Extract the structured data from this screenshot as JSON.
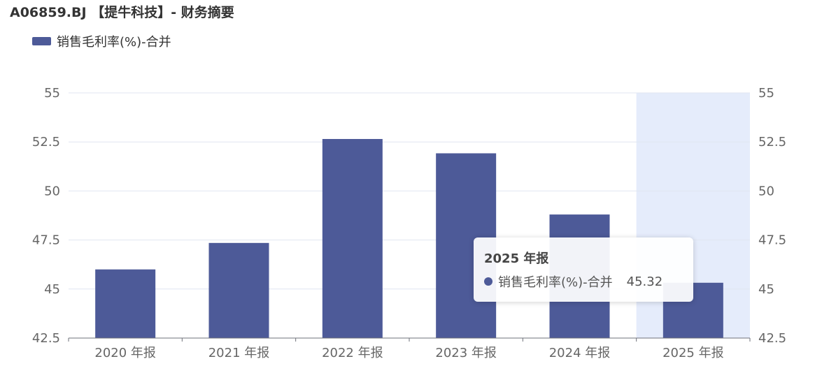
{
  "header": {
    "title": "A06859.BJ 【提牛科技】- 财务摘要"
  },
  "colors": {
    "bar": "#4d5a98",
    "highlight": "#e5ecfb",
    "grid": "#e0e6f1",
    "axis": "#6e7079"
  },
  "chart_data": {
    "type": "bar",
    "categories": [
      "2020 年报",
      "2021 年报",
      "2022 年报",
      "2023 年报",
      "2024 年报",
      "2025 年报"
    ],
    "series": [
      {
        "name": "销售毛利率(%)-合并",
        "values": [
          46.0,
          47.35,
          52.65,
          51.92,
          48.8,
          45.32
        ]
      }
    ],
    "ylim": [
      42.5,
      55
    ],
    "yticks": [
      "42.5",
      "45",
      "47.5",
      "50",
      "52.5",
      "55"
    ],
    "y_axis_sides": "left-and-right",
    "grid": true,
    "legend": "top-left",
    "highlighted_category": "2025 年报"
  },
  "tooltip": {
    "title": "2025 年报",
    "series_name": "销售毛利率(%)-合并",
    "value": "45.32"
  }
}
